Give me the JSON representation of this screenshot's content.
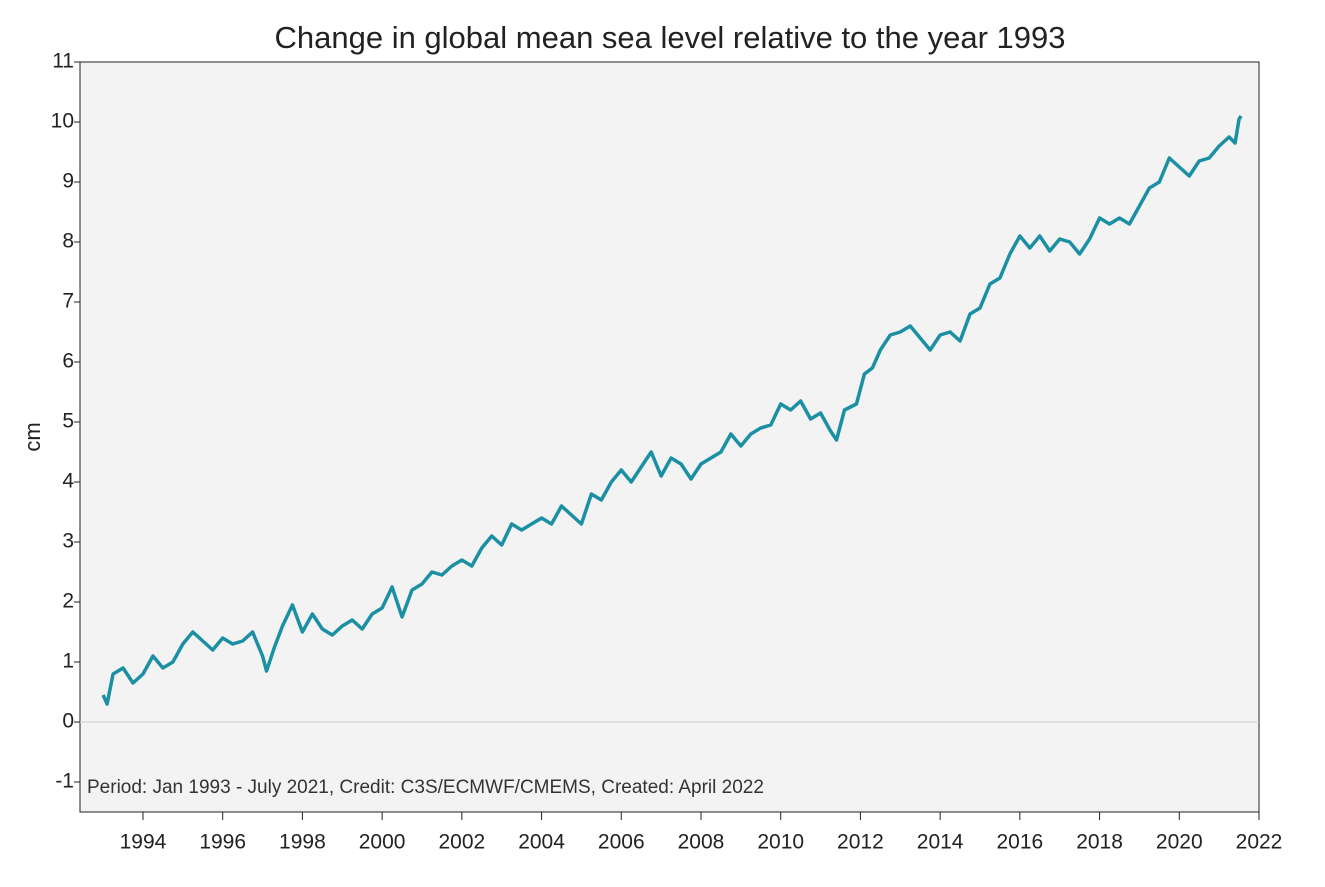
{
  "chart_data": {
    "type": "line",
    "title": "Change in global mean sea level relative to the year 1993",
    "y_label": "cm",
    "annotation": "Period: Jan 1993 - July 2021, Credit: C3S/ECMWF/CMEMS, Created: April 2022",
    "x": [
      1993.0,
      1993.1,
      1993.25,
      1993.5,
      1993.75,
      1994.0,
      1994.25,
      1994.5,
      1994.75,
      1995.0,
      1995.25,
      1995.5,
      1995.75,
      1996.0,
      1996.25,
      1996.5,
      1996.75,
      1997.0,
      1997.1,
      1997.3,
      1997.5,
      1997.75,
      1998.0,
      1998.25,
      1998.5,
      1998.75,
      1999.0,
      1999.25,
      1999.5,
      1999.75,
      2000.0,
      2000.25,
      2000.5,
      2000.75,
      2001.0,
      2001.25,
      2001.5,
      2001.75,
      2002.0,
      2002.25,
      2002.5,
      2002.75,
      2003.0,
      2003.25,
      2003.5,
      2003.75,
      2004.0,
      2004.25,
      2004.5,
      2004.75,
      2005.0,
      2005.25,
      2005.5,
      2005.75,
      2006.0,
      2006.25,
      2006.5,
      2006.75,
      2007.0,
      2007.25,
      2007.5,
      2007.75,
      2008.0,
      2008.25,
      2008.5,
      2008.75,
      2009.0,
      2009.25,
      2009.5,
      2009.75,
      2010.0,
      2010.25,
      2010.5,
      2010.75,
      2011.0,
      2011.25,
      2011.4,
      2011.6,
      2011.9,
      2012.1,
      2012.3,
      2012.5,
      2012.75,
      2013.0,
      2013.25,
      2013.5,
      2013.75,
      2014.0,
      2014.25,
      2014.5,
      2014.75,
      2015.0,
      2015.25,
      2015.5,
      2015.75,
      2016.0,
      2016.25,
      2016.5,
      2016.75,
      2017.0,
      2017.25,
      2017.5,
      2017.75,
      2018.0,
      2018.25,
      2018.5,
      2018.75,
      2019.0,
      2019.25,
      2019.5,
      2019.75,
      2020.0,
      2020.25,
      2020.5,
      2020.75,
      2021.0,
      2021.25,
      2021.4,
      2021.5,
      2021.55
    ],
    "series": [
      {
        "name": "Global mean sea level",
        "color": "#1b8fa3",
        "values": [
          0.45,
          0.3,
          0.8,
          0.9,
          0.65,
          0.8,
          1.1,
          0.9,
          1.0,
          1.3,
          1.5,
          1.35,
          1.2,
          1.4,
          1.3,
          1.35,
          1.5,
          1.1,
          0.85,
          1.25,
          1.6,
          1.95,
          1.5,
          1.8,
          1.55,
          1.45,
          1.6,
          1.7,
          1.55,
          1.8,
          1.9,
          2.25,
          1.75,
          2.2,
          2.3,
          2.5,
          2.45,
          2.6,
          2.7,
          2.6,
          2.9,
          3.1,
          2.95,
          3.3,
          3.2,
          3.3,
          3.4,
          3.3,
          3.6,
          3.45,
          3.3,
          3.8,
          3.7,
          4.0,
          4.2,
          4.0,
          4.25,
          4.5,
          4.1,
          4.4,
          4.3,
          4.05,
          4.3,
          4.4,
          4.5,
          4.8,
          4.6,
          4.8,
          4.9,
          4.95,
          5.3,
          5.2,
          5.35,
          5.05,
          5.15,
          4.85,
          4.7,
          5.2,
          5.3,
          5.8,
          5.9,
          6.2,
          6.45,
          6.5,
          6.6,
          6.4,
          6.2,
          6.45,
          6.5,
          6.35,
          6.8,
          6.9,
          7.3,
          7.4,
          7.8,
          8.1,
          7.9,
          8.1,
          7.85,
          8.05,
          8.0,
          7.8,
          8.05,
          8.4,
          8.3,
          8.4,
          8.3,
          8.6,
          8.9,
          9.0,
          9.4,
          9.25,
          9.1,
          9.35,
          9.4,
          9.6,
          9.75,
          9.65,
          10.05,
          10.1
        ]
      }
    ],
    "xlim": [
      1992.42,
      2022
    ],
    "ylim": [
      -1.5,
      11
    ],
    "xticks": [
      1994,
      1996,
      1998,
      2000,
      2002,
      2004,
      2006,
      2008,
      2010,
      2012,
      2014,
      2016,
      2018,
      2020,
      2022
    ],
    "yticks": [
      -1,
      0,
      1,
      2,
      3,
      4,
      5,
      6,
      7,
      8,
      9,
      10,
      11
    ],
    "zero_line": true
  }
}
